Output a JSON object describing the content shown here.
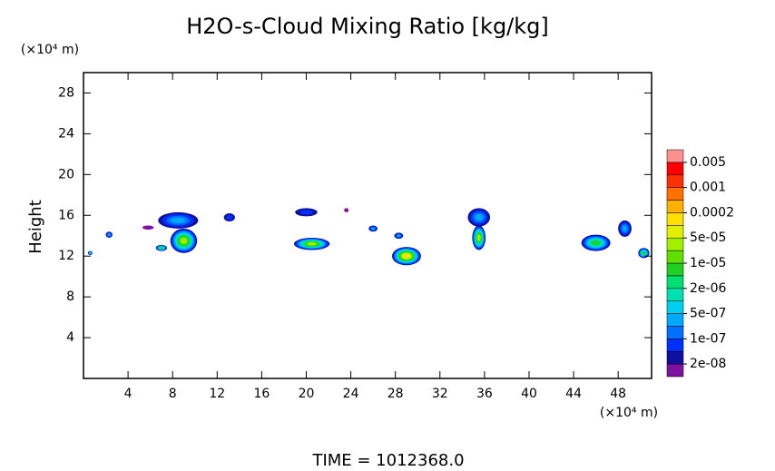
{
  "chart_data": {
    "type": "contour",
    "title": "H2O-s-Cloud Mixing Ratio [kg/kg]",
    "y_label": "Height",
    "y_unit": "(×10⁴ m)",
    "x_unit": "(×10⁴ m)",
    "footer": "TIME = 1012368.0",
    "xlim": [
      0,
      51
    ],
    "ylim": [
      0,
      30
    ],
    "xticks": [
      4,
      8,
      12,
      16,
      20,
      24,
      28,
      32,
      36,
      40,
      44,
      48
    ],
    "yticks": [
      4,
      8,
      12,
      16,
      20,
      24,
      28
    ],
    "colorbar": {
      "levels": [
        {
          "value": 2e-08,
          "label": "2e-08"
        },
        {
          "value": 1e-07,
          "label": "1e-07"
        },
        {
          "value": 5e-07,
          "label": "5e-07"
        },
        {
          "value": 2e-06,
          "label": "2e-06"
        },
        {
          "value": 1e-05,
          "label": "1e-05"
        },
        {
          "value": 5e-05,
          "label": "5e-05"
        },
        0.0002,
        0.001,
        0.005
      ],
      "colors": [
        "#8010a0",
        "#1010a0",
        "#0030ff",
        "#0070ff",
        "#00a8ff",
        "#00d0f0",
        "#00e0b0",
        "#00e070",
        "#20d020",
        "#60e000",
        "#a0f000",
        "#e0f000",
        "#ffe000",
        "#ffb000",
        "#ff7000",
        "#ff3000",
        "#ff0000",
        "#ff9090"
      ]
    },
    "cells": [
      {
        "x": 8.5,
        "y": 15.5,
        "rx": 1.8,
        "ry": 0.8,
        "peak": 5e-07
      },
      {
        "x": 9.0,
        "y": 13.5,
        "rx": 1.2,
        "ry": 1.2,
        "peak": 5e-05
      },
      {
        "x": 7.0,
        "y": 12.8,
        "rx": 0.5,
        "ry": 0.3,
        "peak": 1e-05
      },
      {
        "x": 2.3,
        "y": 14.1,
        "rx": 0.3,
        "ry": 0.3,
        "peak": 5e-07
      },
      {
        "x": 0.6,
        "y": 12.3,
        "rx": 0.2,
        "ry": 0.2,
        "peak": 2e-06
      },
      {
        "x": 5.8,
        "y": 14.8,
        "rx": 0.5,
        "ry": 0.2,
        "peak": 2e-08
      },
      {
        "x": 13.1,
        "y": 15.8,
        "rx": 0.5,
        "ry": 0.4,
        "peak": 1e-07
      },
      {
        "x": 20.0,
        "y": 16.3,
        "rx": 1.0,
        "ry": 0.4,
        "peak": 1e-07
      },
      {
        "x": 20.5,
        "y": 13.2,
        "rx": 1.6,
        "ry": 0.6,
        "peak": 5e-05
      },
      {
        "x": 23.6,
        "y": 16.5,
        "rx": 0.2,
        "ry": 0.2,
        "peak": 2e-08
      },
      {
        "x": 26.0,
        "y": 14.7,
        "rx": 0.4,
        "ry": 0.3,
        "peak": 5e-07
      },
      {
        "x": 28.3,
        "y": 14.0,
        "rx": 0.4,
        "ry": 0.3,
        "peak": 5e-07
      },
      {
        "x": 29.0,
        "y": 12.0,
        "rx": 1.3,
        "ry": 0.9,
        "peak": 0.0002
      },
      {
        "x": 35.5,
        "y": 15.8,
        "rx": 1.0,
        "ry": 0.9,
        "peak": 5e-07
      },
      {
        "x": 35.5,
        "y": 13.8,
        "rx": 0.6,
        "ry": 1.2,
        "peak": 5e-05
      },
      {
        "x": 46.0,
        "y": 13.3,
        "rx": 1.3,
        "ry": 0.8,
        "peak": 1e-05
      },
      {
        "x": 48.6,
        "y": 14.7,
        "rx": 0.6,
        "ry": 0.8,
        "peak": 5e-07
      },
      {
        "x": 50.3,
        "y": 12.3,
        "rx": 0.5,
        "ry": 0.5,
        "peak": 1e-05
      }
    ]
  }
}
